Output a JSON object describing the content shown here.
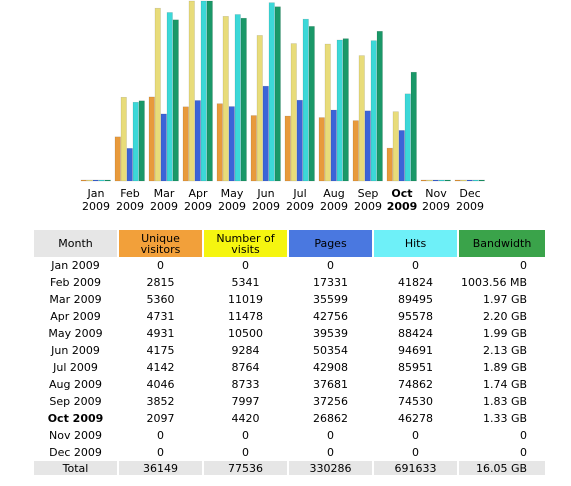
{
  "colors": {
    "unique": "#e89a3c",
    "visits": "#e8dc7a",
    "pages": "#3c64d8",
    "hits": "#3cd8d8",
    "bandwidth": "#1a9868"
  },
  "chart_data": {
    "type": "bar",
    "categories": [
      "Jan 2009",
      "Feb 2009",
      "Mar 2009",
      "Apr 2009",
      "May 2009",
      "Jun 2009",
      "Jul 2009",
      "Aug 2009",
      "Sep 2009",
      "Oct 2009",
      "Nov 2009",
      "Dec 2009"
    ],
    "month_labels": [
      {
        "m": "Jan",
        "y": "2009"
      },
      {
        "m": "Feb",
        "y": "2009"
      },
      {
        "m": "Mar",
        "y": "2009"
      },
      {
        "m": "Apr",
        "y": "2009"
      },
      {
        "m": "May",
        "y": "2009"
      },
      {
        "m": "Jun",
        "y": "2009"
      },
      {
        "m": "Jul",
        "y": "2009"
      },
      {
        "m": "Aug",
        "y": "2009"
      },
      {
        "m": "Sep",
        "y": "2009"
      },
      {
        "m": "Oct",
        "y": "2009"
      },
      {
        "m": "Nov",
        "y": "2009"
      },
      {
        "m": "Dec",
        "y": "2009"
      }
    ],
    "current_index": 9,
    "series": [
      {
        "key": "unique",
        "values": [
          0,
          2815,
          5360,
          4731,
          4931,
          4175,
          4142,
          4046,
          3852,
          2097,
          0,
          0
        ]
      },
      {
        "key": "visits",
        "values": [
          0,
          5341,
          11019,
          11478,
          10500,
          9284,
          8764,
          8733,
          7997,
          4420,
          0,
          0
        ]
      },
      {
        "key": "pages",
        "values": [
          0,
          17331,
          35599,
          42756,
          39539,
          50354,
          42908,
          37681,
          37256,
          26862,
          0,
          0
        ]
      },
      {
        "key": "hits",
        "values": [
          0,
          41824,
          89495,
          95578,
          88424,
          94691,
          85951,
          74862,
          74530,
          46278,
          0,
          0
        ]
      },
      {
        "key": "bandwidth",
        "values_gb": [
          0,
          0.98,
          1.97,
          2.2,
          1.99,
          2.13,
          1.89,
          1.74,
          1.83,
          1.33,
          0,
          0
        ]
      }
    ]
  },
  "table": {
    "headers": {
      "month": "Month",
      "unique": "Unique visitors",
      "visits": "Number of visits",
      "pages": "Pages",
      "hits": "Hits",
      "bandwidth": "Bandwidth"
    },
    "rows": [
      {
        "month": "Jan 2009",
        "unique": "0",
        "visits": "0",
        "pages": "0",
        "hits": "0",
        "bandwidth": "0"
      },
      {
        "month": "Feb 2009",
        "unique": "2815",
        "visits": "5341",
        "pages": "17331",
        "hits": "41824",
        "bandwidth": "1003.56 MB"
      },
      {
        "month": "Mar 2009",
        "unique": "5360",
        "visits": "11019",
        "pages": "35599",
        "hits": "89495",
        "bandwidth": "1.97 GB"
      },
      {
        "month": "Apr 2009",
        "unique": "4731",
        "visits": "11478",
        "pages": "42756",
        "hits": "95578",
        "bandwidth": "2.20 GB"
      },
      {
        "month": "May 2009",
        "unique": "4931",
        "visits": "10500",
        "pages": "39539",
        "hits": "88424",
        "bandwidth": "1.99 GB"
      },
      {
        "month": "Jun 2009",
        "unique": "4175",
        "visits": "9284",
        "pages": "50354",
        "hits": "94691",
        "bandwidth": "2.13 GB"
      },
      {
        "month": "Jul 2009",
        "unique": "4142",
        "visits": "8764",
        "pages": "42908",
        "hits": "85951",
        "bandwidth": "1.89 GB"
      },
      {
        "month": "Aug 2009",
        "unique": "4046",
        "visits": "8733",
        "pages": "37681",
        "hits": "74862",
        "bandwidth": "1.74 GB"
      },
      {
        "month": "Sep 2009",
        "unique": "3852",
        "visits": "7997",
        "pages": "37256",
        "hits": "74530",
        "bandwidth": "1.83 GB"
      },
      {
        "month": "Oct 2009",
        "unique": "2097",
        "visits": "4420",
        "pages": "26862",
        "hits": "46278",
        "bandwidth": "1.33 GB",
        "current": true
      },
      {
        "month": "Nov 2009",
        "unique": "0",
        "visits": "0",
        "pages": "0",
        "hits": "0",
        "bandwidth": "0"
      },
      {
        "month": "Dec 2009",
        "unique": "0",
        "visits": "0",
        "pages": "0",
        "hits": "0",
        "bandwidth": "0"
      }
    ],
    "total": {
      "label": "Total",
      "unique": "36149",
      "visits": "77536",
      "pages": "330286",
      "hits": "691633",
      "bandwidth": "16.05 GB"
    }
  }
}
